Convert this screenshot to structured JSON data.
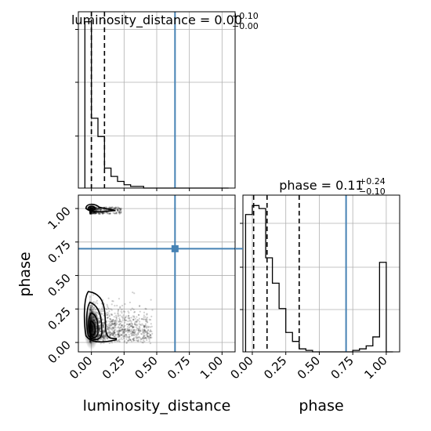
{
  "chart_data": [
    {
      "type": "histogram",
      "panel": "luminosity_distance marginal",
      "title_param": "luminosity_distance",
      "title_value": "0.00",
      "title_upper": "+0.10",
      "title_lower": "−0.00",
      "xlim": [
        -0.1,
        1.1
      ],
      "bin_edges": [
        -0.05,
        0.0,
        0.05,
        0.1,
        0.15,
        0.2,
        0.25,
        0.3,
        0.35,
        0.4,
        0.45,
        0.5,
        0.55,
        0.6,
        0.65,
        0.7,
        0.75,
        0.8,
        0.85,
        0.9,
        0.95,
        1.0,
        1.05
      ],
      "counts": [
        1.0,
        0.42,
        0.31,
        0.12,
        0.07,
        0.04,
        0.02,
        0.01,
        0.01,
        0.0,
        0.0,
        0.0,
        0.0,
        0.0,
        0.0,
        0.0,
        0.0,
        0.0,
        0.0,
        0.0,
        0.0,
        0.0
      ],
      "quantiles": [
        0.0,
        0.0,
        0.1
      ],
      "truth": 0.64,
      "grid": true,
      "ytick_labels_hidden": true
    },
    {
      "type": "histogram",
      "panel": "phase marginal",
      "title_param": "phase",
      "title_value": "0.11",
      "title_upper": "+0.24",
      "title_lower": "−0.10",
      "xlim": [
        -0.07,
        1.1
      ],
      "bin_edges": [
        -0.05,
        0.0,
        0.05,
        0.1,
        0.15,
        0.2,
        0.25,
        0.3,
        0.35,
        0.4,
        0.45,
        0.5,
        0.55,
        0.6,
        0.65,
        0.7,
        0.75,
        0.8,
        0.85,
        0.9,
        0.95,
        1.0,
        1.05
      ],
      "counts": [
        0.92,
        0.98,
        0.96,
        0.63,
        0.46,
        0.29,
        0.13,
        0.07,
        0.02,
        0.01,
        0.0,
        0.0,
        0.0,
        0.0,
        0.0,
        0.0,
        0.01,
        0.02,
        0.04,
        0.1,
        0.6,
        0.0
      ],
      "quantiles": [
        0.01,
        0.11,
        0.35
      ],
      "truth": 0.7,
      "grid": true,
      "xlabel": "phase",
      "xticks": [
        0.0,
        0.25,
        0.5,
        0.75,
        1.0
      ],
      "xtick_labels": [
        "0.00",
        "0.25",
        "0.50",
        "0.75",
        "1.00"
      ]
    },
    {
      "type": "scatter",
      "panel": "joint 2D (luminosity_distance vs phase) with density contours",
      "xlabel": "luminosity_distance",
      "ylabel": "phase",
      "xlim": [
        -0.1,
        1.1
      ],
      "ylim": [
        -0.07,
        1.1
      ],
      "xticks": [
        0.0,
        0.25,
        0.5,
        0.75,
        1.0
      ],
      "xtick_labels": [
        "0.00",
        "0.25",
        "0.50",
        "0.75",
        "1.00"
      ],
      "yticks": [
        0.0,
        0.25,
        0.5,
        0.75,
        1.0
      ],
      "ytick_labels": [
        "0.00",
        "0.25",
        "0.50",
        "0.75",
        "1.00"
      ],
      "truth": [
        0.64,
        0.7
      ],
      "clusters": [
        {
          "x_range": [
            -0.02,
            0.48
          ],
          "y_range": [
            -0.02,
            0.42
          ],
          "density": "high near x=0, y=0.1"
        },
        {
          "x_range": [
            -0.02,
            0.24
          ],
          "y_range": [
            0.96,
            1.04
          ],
          "density": "high near x=0, y=1"
        }
      ],
      "contour_levels": 4,
      "grid": true
    }
  ],
  "colors": {
    "truth": "#4682b4",
    "hist": "#000000",
    "grid": "#b0b0b0",
    "points": "#000000"
  }
}
